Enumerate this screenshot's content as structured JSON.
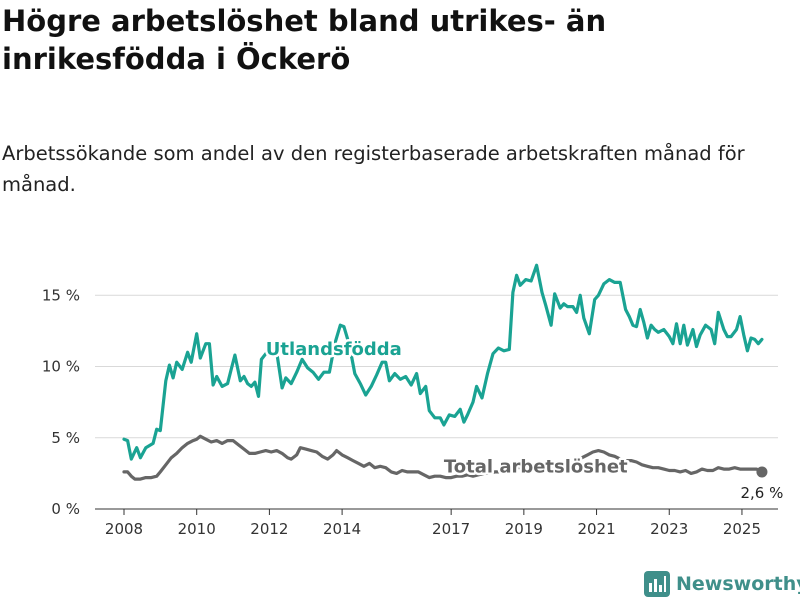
{
  "header": {
    "title": "Högre arbetslöshet bland utrikes- än inrikesfödda i Öckerö",
    "subtitle": "Arbetssökande som andel av den registerbaserade arbetskraften månad för månad."
  },
  "brand": {
    "name": "Newsworthy",
    "color": "#3f8f8a"
  },
  "chart_data": {
    "type": "line",
    "title": "Högre arbetslöshet bland utrikes- än inrikesfödda i Öckerö",
    "subtitle": "Arbetssökande som andel av den registerbaserade arbetskraften månad för månad.",
    "xlabel": "",
    "ylabel": "",
    "ylim": [
      0,
      17.5
    ],
    "xlim": [
      2007.7,
      2026.1
    ],
    "y_ticks": [
      {
        "value": 0,
        "label": "0 %"
      },
      {
        "value": 5,
        "label": "5 %"
      },
      {
        "value": 10,
        "label": "10 %"
      },
      {
        "value": 15,
        "label": "15 %"
      }
    ],
    "x_ticks": [
      {
        "value": 2008,
        "label": "2008"
      },
      {
        "value": 2010,
        "label": "2010"
      },
      {
        "value": 2012,
        "label": "2012"
      },
      {
        "value": 2014,
        "label": "2014"
      },
      {
        "value": 2017,
        "label": "2017"
      },
      {
        "value": 2019,
        "label": "2019"
      },
      {
        "value": 2021,
        "label": "2021"
      },
      {
        "value": 2023,
        "label": "2023"
      },
      {
        "value": 2025,
        "label": "2025"
      }
    ],
    "grid": "horizontal",
    "legend": "inline labels",
    "series": [
      {
        "name": "Utlandsfödda",
        "color": "#1aa393",
        "label_at": [
          2011.9,
          10.8
        ],
        "points": [
          [
            2008.0,
            4.9
          ],
          [
            2008.1,
            4.8
          ],
          [
            2008.2,
            3.5
          ],
          [
            2008.35,
            4.3
          ],
          [
            2008.45,
            3.6
          ],
          [
            2008.6,
            4.3
          ],
          [
            2008.8,
            4.6
          ],
          [
            2008.9,
            5.6
          ],
          [
            2009.0,
            5.5
          ],
          [
            2009.15,
            9.0
          ],
          [
            2009.25,
            10.1
          ],
          [
            2009.35,
            9.2
          ],
          [
            2009.45,
            10.3
          ],
          [
            2009.6,
            9.8
          ],
          [
            2009.75,
            11.0
          ],
          [
            2009.85,
            10.3
          ],
          [
            2010.0,
            12.3
          ],
          [
            2010.1,
            10.6
          ],
          [
            2010.25,
            11.6
          ],
          [
            2010.35,
            11.6
          ],
          [
            2010.45,
            8.7
          ],
          [
            2010.55,
            9.3
          ],
          [
            2010.7,
            8.6
          ],
          [
            2010.85,
            8.8
          ],
          [
            2010.95,
            9.8
          ],
          [
            2011.05,
            10.8
          ],
          [
            2011.2,
            9.0
          ],
          [
            2011.3,
            9.3
          ],
          [
            2011.4,
            8.8
          ],
          [
            2011.5,
            8.6
          ],
          [
            2011.6,
            8.9
          ],
          [
            2011.7,
            7.9
          ],
          [
            2011.78,
            10.5
          ],
          [
            2011.9,
            10.9
          ],
          [
            2012.05,
            11.3
          ],
          [
            2012.2,
            11.0
          ],
          [
            2012.35,
            8.5
          ],
          [
            2012.45,
            9.2
          ],
          [
            2012.6,
            8.8
          ],
          [
            2012.75,
            9.6
          ],
          [
            2012.9,
            10.5
          ],
          [
            2013.05,
            9.9
          ],
          [
            2013.2,
            9.6
          ],
          [
            2013.35,
            9.1
          ],
          [
            2013.5,
            9.6
          ],
          [
            2013.65,
            9.6
          ],
          [
            2013.8,
            11.6
          ],
          [
            2013.95,
            12.9
          ],
          [
            2014.05,
            12.8
          ],
          [
            2014.2,
            11.5
          ],
          [
            2014.35,
            9.5
          ],
          [
            2014.5,
            8.8
          ],
          [
            2014.65,
            8.0
          ],
          [
            2014.8,
            8.6
          ],
          [
            2014.95,
            9.4
          ],
          [
            2015.1,
            10.3
          ],
          [
            2015.2,
            10.3
          ],
          [
            2015.3,
            9.0
          ],
          [
            2015.45,
            9.5
          ],
          [
            2015.6,
            9.1
          ],
          [
            2015.75,
            9.3
          ],
          [
            2015.9,
            8.7
          ],
          [
            2016.05,
            9.5
          ],
          [
            2016.15,
            8.1
          ],
          [
            2016.3,
            8.6
          ],
          [
            2016.4,
            6.9
          ],
          [
            2016.55,
            6.4
          ],
          [
            2016.7,
            6.4
          ],
          [
            2016.8,
            5.9
          ],
          [
            2016.95,
            6.6
          ],
          [
            2017.1,
            6.5
          ],
          [
            2017.25,
            7.0
          ],
          [
            2017.35,
            6.1
          ],
          [
            2017.45,
            6.6
          ],
          [
            2017.6,
            7.5
          ],
          [
            2017.7,
            8.6
          ],
          [
            2017.85,
            7.8
          ],
          [
            2018.0,
            9.5
          ],
          [
            2018.15,
            10.9
          ],
          [
            2018.3,
            11.3
          ],
          [
            2018.45,
            11.1
          ],
          [
            2018.6,
            11.2
          ],
          [
            2018.7,
            15.2
          ],
          [
            2018.8,
            16.4
          ],
          [
            2018.9,
            15.7
          ],
          [
            2019.05,
            16.1
          ],
          [
            2019.2,
            16.0
          ],
          [
            2019.35,
            17.1
          ],
          [
            2019.5,
            15.2
          ],
          [
            2019.6,
            14.3
          ],
          [
            2019.75,
            12.9
          ],
          [
            2019.85,
            15.1
          ],
          [
            2020.0,
            14.1
          ],
          [
            2020.1,
            14.4
          ],
          [
            2020.2,
            14.2
          ],
          [
            2020.35,
            14.2
          ],
          [
            2020.45,
            13.8
          ],
          [
            2020.55,
            15.0
          ],
          [
            2020.65,
            13.4
          ],
          [
            2020.8,
            12.3
          ],
          [
            2020.95,
            14.7
          ],
          [
            2021.05,
            15.0
          ],
          [
            2021.2,
            15.8
          ],
          [
            2021.35,
            16.1
          ],
          [
            2021.5,
            15.9
          ],
          [
            2021.65,
            15.9
          ],
          [
            2021.8,
            14.0
          ],
          [
            2021.9,
            13.5
          ],
          [
            2022.0,
            12.9
          ],
          [
            2022.1,
            12.8
          ],
          [
            2022.2,
            14.0
          ],
          [
            2022.3,
            13.1
          ],
          [
            2022.4,
            12.0
          ],
          [
            2022.5,
            12.9
          ],
          [
            2022.6,
            12.6
          ],
          [
            2022.7,
            12.4
          ],
          [
            2022.85,
            12.6
          ],
          [
            2023.0,
            12.1
          ],
          [
            2023.1,
            11.6
          ],
          [
            2023.2,
            13.0
          ],
          [
            2023.3,
            11.6
          ],
          [
            2023.4,
            12.9
          ],
          [
            2023.5,
            11.5
          ],
          [
            2023.65,
            12.6
          ],
          [
            2023.75,
            11.4
          ],
          [
            2023.85,
            12.2
          ],
          [
            2024.0,
            12.9
          ],
          [
            2024.15,
            12.6
          ],
          [
            2024.25,
            11.6
          ],
          [
            2024.35,
            13.8
          ],
          [
            2024.5,
            12.6
          ],
          [
            2024.6,
            12.1
          ],
          [
            2024.7,
            12.1
          ],
          [
            2024.85,
            12.6
          ],
          [
            2024.95,
            13.5
          ],
          [
            2025.05,
            12.2
          ],
          [
            2025.15,
            11.1
          ],
          [
            2025.25,
            12.0
          ],
          [
            2025.35,
            11.9
          ],
          [
            2025.45,
            11.6
          ],
          [
            2025.55,
            11.9
          ]
        ]
      },
      {
        "name": "Total arbetslöshet",
        "color": "#666666",
        "label_at": [
          2016.8,
          2.55
        ],
        "end_value_label": "2,6 %",
        "points": [
          [
            2008.0,
            2.6
          ],
          [
            2008.1,
            2.6
          ],
          [
            2008.2,
            2.3
          ],
          [
            2008.3,
            2.1
          ],
          [
            2008.45,
            2.1
          ],
          [
            2008.6,
            2.2
          ],
          [
            2008.75,
            2.2
          ],
          [
            2008.9,
            2.3
          ],
          [
            2009.0,
            2.6
          ],
          [
            2009.15,
            3.1
          ],
          [
            2009.3,
            3.6
          ],
          [
            2009.45,
            3.9
          ],
          [
            2009.6,
            4.3
          ],
          [
            2009.75,
            4.6
          ],
          [
            2009.9,
            4.8
          ],
          [
            2010.0,
            4.9
          ],
          [
            2010.1,
            5.1
          ],
          [
            2010.25,
            4.9
          ],
          [
            2010.4,
            4.7
          ],
          [
            2010.55,
            4.8
          ],
          [
            2010.7,
            4.6
          ],
          [
            2010.85,
            4.8
          ],
          [
            2011.0,
            4.8
          ],
          [
            2011.15,
            4.5
          ],
          [
            2011.3,
            4.2
          ],
          [
            2011.45,
            3.9
          ],
          [
            2011.6,
            3.9
          ],
          [
            2011.75,
            4.0
          ],
          [
            2011.9,
            4.1
          ],
          [
            2012.05,
            4.0
          ],
          [
            2012.2,
            4.1
          ],
          [
            2012.35,
            3.9
          ],
          [
            2012.5,
            3.6
          ],
          [
            2012.6,
            3.5
          ],
          [
            2012.75,
            3.8
          ],
          [
            2012.85,
            4.3
          ],
          [
            2013.0,
            4.2
          ],
          [
            2013.15,
            4.1
          ],
          [
            2013.3,
            4.0
          ],
          [
            2013.45,
            3.7
          ],
          [
            2013.6,
            3.5
          ],
          [
            2013.75,
            3.8
          ],
          [
            2013.85,
            4.1
          ],
          [
            2014.0,
            3.8
          ],
          [
            2014.15,
            3.6
          ],
          [
            2014.3,
            3.4
          ],
          [
            2014.45,
            3.2
          ],
          [
            2014.6,
            3.0
          ],
          [
            2014.75,
            3.2
          ],
          [
            2014.9,
            2.9
          ],
          [
            2015.05,
            3.0
          ],
          [
            2015.2,
            2.9
          ],
          [
            2015.35,
            2.6
          ],
          [
            2015.5,
            2.5
          ],
          [
            2015.65,
            2.7
          ],
          [
            2015.8,
            2.6
          ],
          [
            2015.95,
            2.6
          ],
          [
            2016.1,
            2.6
          ],
          [
            2016.25,
            2.4
          ],
          [
            2016.4,
            2.2
          ],
          [
            2016.55,
            2.3
          ],
          [
            2016.7,
            2.3
          ],
          [
            2016.85,
            2.2
          ],
          [
            2017.0,
            2.2
          ],
          [
            2017.15,
            2.3
          ],
          [
            2017.3,
            2.3
          ],
          [
            2017.45,
            2.4
          ],
          [
            2017.6,
            2.3
          ],
          [
            2017.75,
            2.4
          ],
          [
            2017.9,
            2.5
          ],
          [
            2018.05,
            2.5
          ],
          [
            2018.2,
            2.6
          ],
          [
            2018.35,
            2.6
          ],
          [
            2018.5,
            2.6
          ],
          [
            2018.65,
            2.7
          ],
          [
            2018.8,
            2.9
          ],
          [
            2018.95,
            2.9
          ],
          [
            2019.1,
            3.0
          ],
          [
            2019.25,
            3.0
          ],
          [
            2019.4,
            3.0
          ],
          [
            2019.55,
            3.0
          ],
          [
            2019.7,
            2.9
          ],
          [
            2019.85,
            2.9
          ],
          [
            2020.0,
            3.0
          ],
          [
            2020.15,
            3.1
          ],
          [
            2020.3,
            3.2
          ],
          [
            2020.45,
            3.4
          ],
          [
            2020.6,
            3.6
          ],
          [
            2020.75,
            3.8
          ],
          [
            2020.9,
            4.0
          ],
          [
            2021.05,
            4.1
          ],
          [
            2021.2,
            4.0
          ],
          [
            2021.35,
            3.8
          ],
          [
            2021.5,
            3.7
          ],
          [
            2021.65,
            3.5
          ],
          [
            2021.8,
            3.4
          ],
          [
            2021.95,
            3.4
          ],
          [
            2022.1,
            3.3
          ],
          [
            2022.25,
            3.1
          ],
          [
            2022.4,
            3.0
          ],
          [
            2022.55,
            2.9
          ],
          [
            2022.7,
            2.9
          ],
          [
            2022.85,
            2.8
          ],
          [
            2023.0,
            2.7
          ],
          [
            2023.15,
            2.7
          ],
          [
            2023.3,
            2.6
          ],
          [
            2023.45,
            2.7
          ],
          [
            2023.6,
            2.5
          ],
          [
            2023.75,
            2.6
          ],
          [
            2023.9,
            2.8
          ],
          [
            2024.05,
            2.7
          ],
          [
            2024.2,
            2.7
          ],
          [
            2024.35,
            2.9
          ],
          [
            2024.5,
            2.8
          ],
          [
            2024.65,
            2.8
          ],
          [
            2024.8,
            2.9
          ],
          [
            2024.95,
            2.8
          ],
          [
            2025.1,
            2.8
          ],
          [
            2025.25,
            2.8
          ],
          [
            2025.4,
            2.8
          ],
          [
            2025.55,
            2.6
          ]
        ]
      }
    ]
  }
}
